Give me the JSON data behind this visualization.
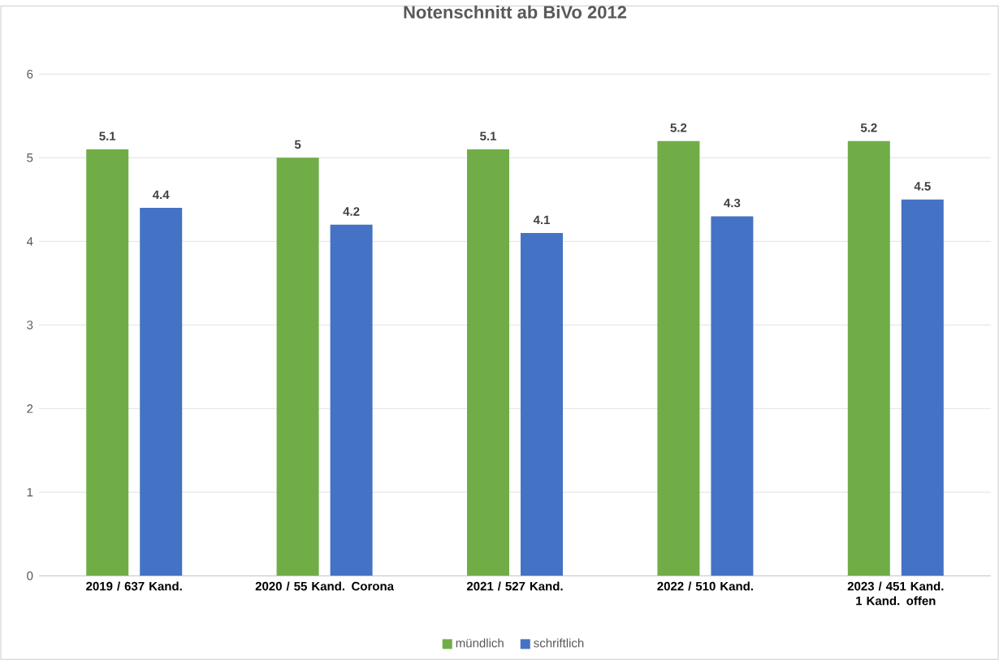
{
  "chart_data": {
    "type": "bar",
    "title": "Notenschnitt ab BiVo 2012",
    "categories": [
      "2019 / 637 Kand.",
      "2020 / 55 Kand. Corona",
      "2021 / 527 Kand.",
      "2022 / 510 Kand.",
      "2023 / 451 Kand. 1 Kand. offen"
    ],
    "series": [
      {
        "name": "mündlich",
        "color": "#70ad47",
        "values": [
          5.1,
          5,
          5.1,
          5.2,
          5.2
        ]
      },
      {
        "name": "schriftlich",
        "color": "#4472c4",
        "values": [
          4.4,
          4.2,
          4.1,
          4.3,
          4.5
        ]
      }
    ],
    "ylim": [
      0,
      6
    ],
    "yticks": [
      0,
      1,
      2,
      3,
      4,
      5,
      6
    ],
    "grid": "y",
    "legend": "bottom",
    "data_labels": true
  }
}
